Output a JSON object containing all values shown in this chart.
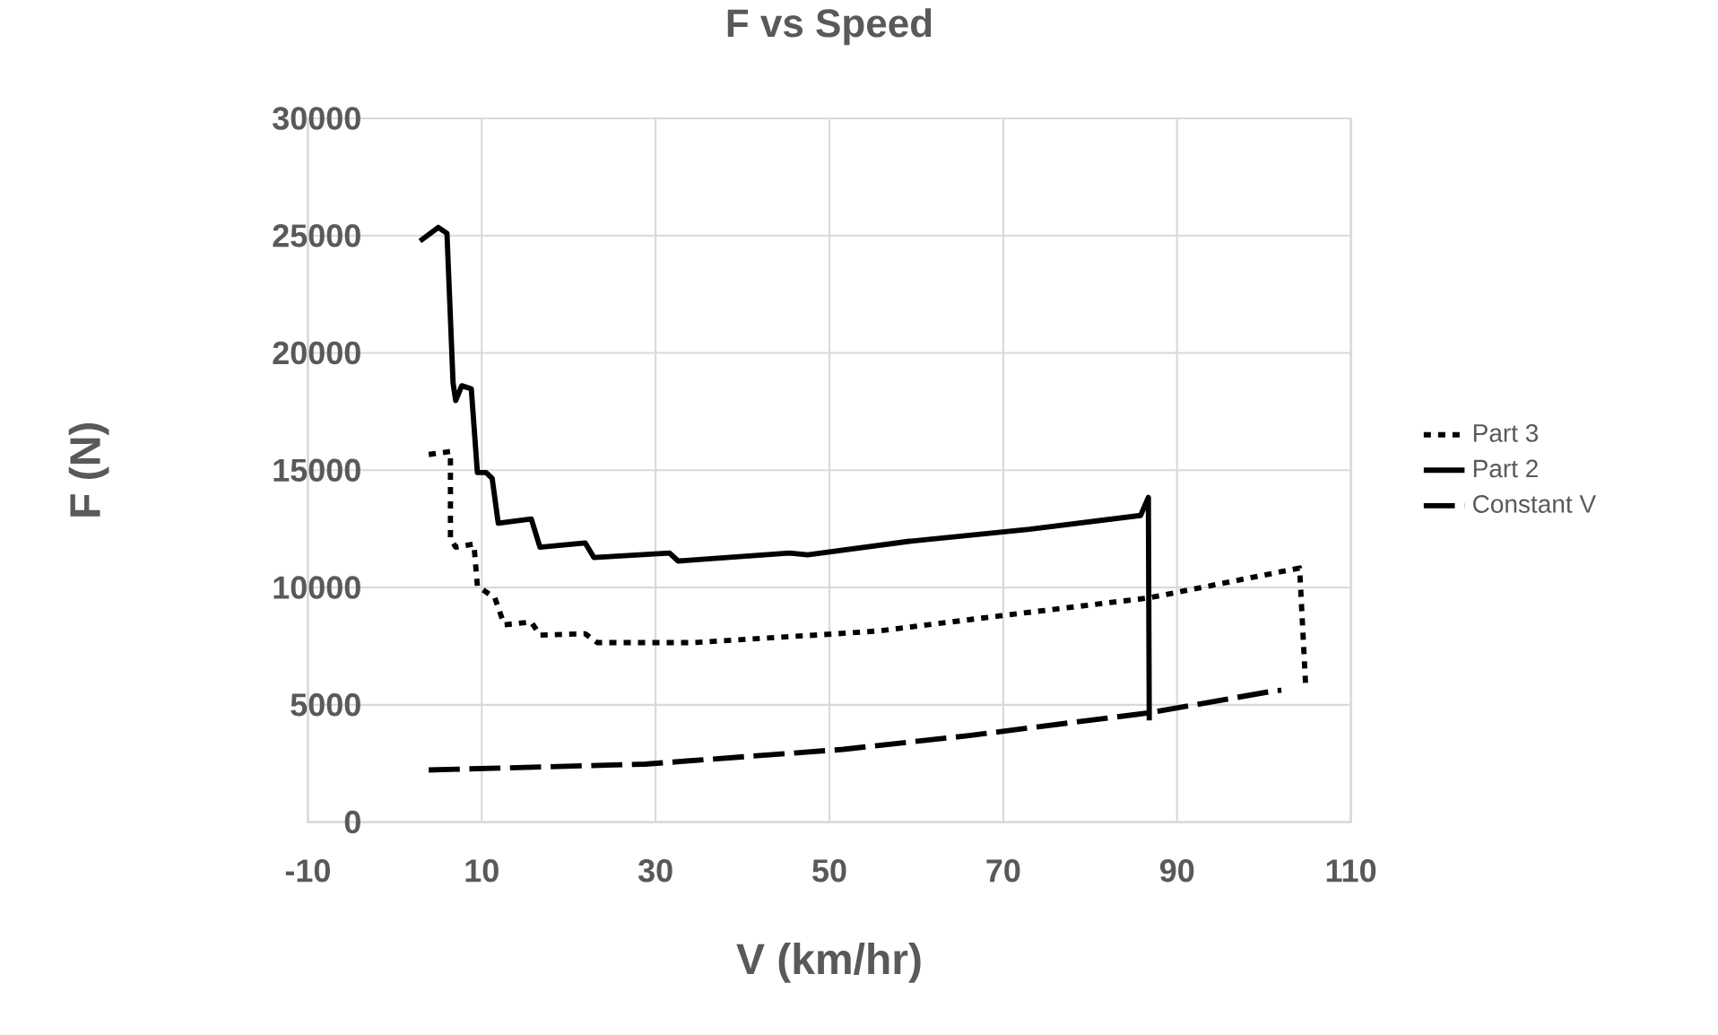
{
  "chart_data": {
    "type": "line",
    "title": "F vs Speed",
    "xlabel": "V (km/hr)",
    "ylabel": "F (N)",
    "xlim": [
      -10,
      110
    ],
    "xticks": [
      -10,
      10,
      30,
      50,
      70,
      90,
      110
    ],
    "ylim": [
      0,
      30000
    ],
    "yticks": [
      0,
      5000,
      10000,
      15000,
      20000,
      25000,
      30000
    ],
    "grid": true,
    "legend": "right",
    "marker": "none",
    "series": [
      {
        "name": "Part 3",
        "color": "#000000",
        "line_style": "dotted",
        "x": [
          3.9,
          6.4,
          6.4,
          7.0,
          9.1,
          9.5,
          11.5,
          12.6,
          15.7,
          16.7,
          21.9,
          23.3,
          34.3,
          50.9,
          55.7,
          69.6,
          86.8,
          104.1,
          104.8
        ],
        "values": [
          15670,
          15800,
          12100,
          11720,
          11850,
          10060,
          9560,
          8410,
          8530,
          7970,
          8030,
          7650,
          7650,
          8030,
          8150,
          8790,
          9560,
          10830,
          5780
        ]
      },
      {
        "name": "Part 2",
        "color": "#000000",
        "line_style": "solid",
        "x": [
          2.9,
          5.0,
          6.0,
          6.7,
          7.0,
          7.7,
          8.8,
          9.5,
          10.5,
          11.2,
          11.9,
          15.7,
          16.7,
          21.9,
          22.9,
          31.6,
          32.6,
          45.4,
          47.5,
          59.2,
          73.0,
          85.8,
          86.7,
          86.8
        ],
        "values": [
          24770,
          25350,
          25100,
          18730,
          17970,
          18600,
          18470,
          14900,
          14900,
          14650,
          12740,
          12920,
          11720,
          11900,
          11280,
          11470,
          11130,
          11470,
          11390,
          11970,
          12480,
          13070,
          13840,
          4330
        ]
      },
      {
        "name": "Constant V",
        "color": "#000000",
        "line_style": "dashed",
        "x": [
          3.9,
          28.8,
          45.4,
          51.6,
          66.1,
          86.8,
          101.3,
          102.0
        ],
        "values": [
          2220,
          2470,
          2930,
          3100,
          3690,
          4660,
          5600,
          5620
        ]
      }
    ]
  }
}
